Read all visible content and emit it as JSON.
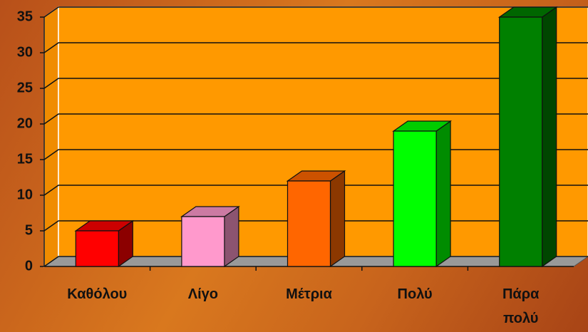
{
  "chart_data": {
    "type": "bar3d",
    "categories": [
      "Καθόλου",
      "Λίγο",
      "Μέτρια",
      "Πολύ",
      "Πάρα πολύ"
    ],
    "values": [
      5,
      7,
      12,
      19,
      35
    ],
    "colors": [
      "#ff0000",
      "#ff99cc",
      "#ff6600",
      "#00ff00",
      "#008000"
    ],
    "ylim": [
      0,
      35
    ],
    "yticks": [
      0,
      5,
      10,
      15,
      20,
      25,
      30,
      35
    ],
    "grid": true
  }
}
